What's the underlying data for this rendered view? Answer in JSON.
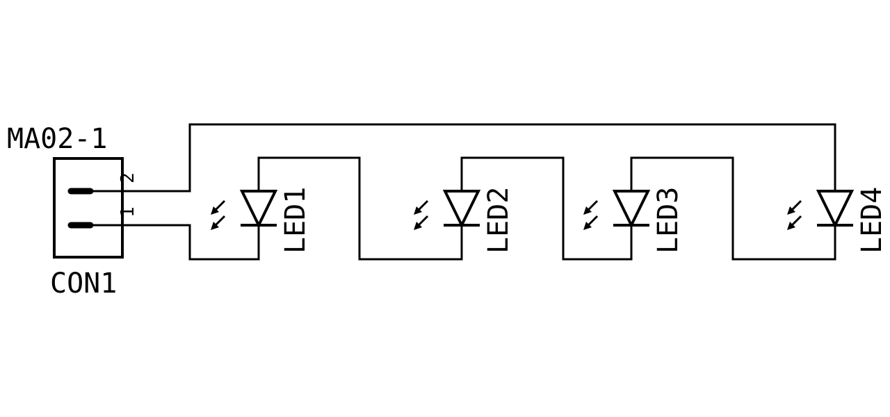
{
  "connector": {
    "value": "MA02-1",
    "name": "CON1",
    "pins": [
      {
        "number": "2"
      },
      {
        "number": "1"
      }
    ]
  },
  "leds": [
    {
      "name": "LED1"
    },
    {
      "name": "LED2"
    },
    {
      "name": "LED3"
    },
    {
      "name": "LED4"
    }
  ]
}
